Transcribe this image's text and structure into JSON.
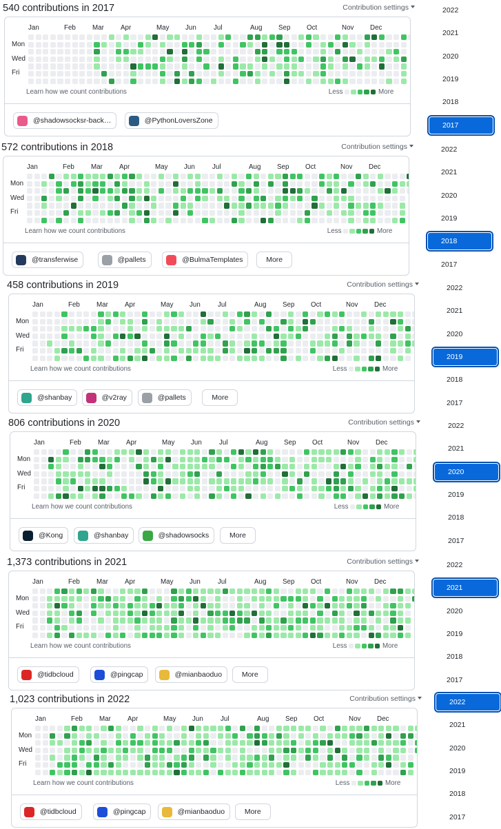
{
  "common": {
    "settings_label": "Contribution settings",
    "months": [
      "Jan",
      "Feb",
      "Mar",
      "Apr",
      "May",
      "Jun",
      "Jul",
      "Aug",
      "Sep",
      "Oct",
      "Nov",
      "Dec"
    ],
    "days": [
      "Mon",
      "Wed",
      "Fri"
    ],
    "learn_label": "Learn how we count contributions",
    "legend_less": "Less",
    "legend_more": "More",
    "more_button": "More"
  },
  "sections": [
    {
      "title": "540 contributions in 2017",
      "orgs": [
        {
          "name": "@shadowsocksr-back…",
          "icon": "paper-plane-icon",
          "color": "#e85b8a"
        },
        {
          "name": "@PythonLoversZone",
          "icon": "python-icon",
          "color": "#2b5b84"
        }
      ],
      "has_more": false,
      "years": [
        "2022",
        "2021",
        "2020",
        "2019",
        "2018",
        "2017"
      ],
      "selected": "2017"
    },
    {
      "title": "572 contributions in 2018",
      "orgs": [
        {
          "name": "@transferwise",
          "icon": "transferwise-icon",
          "color": "#233a5e"
        },
        {
          "name": "@pallets",
          "icon": "pallets-icon",
          "color": "#9aa0a6"
        },
        {
          "name": "@BulmaTemplates",
          "icon": "bulma-icon",
          "color": "#f14b5a"
        }
      ],
      "has_more": true,
      "years": [
        "2022",
        "2021",
        "2020",
        "2019",
        "2018",
        "2017"
      ],
      "selected": "2018"
    },
    {
      "title": "458 contributions in 2019",
      "orgs": [
        {
          "name": "@shanbay",
          "icon": "shanbay-icon",
          "color": "#2ea58d"
        },
        {
          "name": "@v2ray",
          "icon": "v2ray-icon",
          "color": "#c2317a"
        },
        {
          "name": "@pallets",
          "icon": "pallets-icon",
          "color": "#9aa0a6"
        }
      ],
      "has_more": true,
      "years": [
        "2022",
        "2021",
        "2020",
        "2019",
        "2018",
        "2017"
      ],
      "selected": "2019"
    },
    {
      "title": "806 contributions in 2020",
      "orgs": [
        {
          "name": "@Kong",
          "icon": "kong-icon",
          "color": "#0b1f33"
        },
        {
          "name": "@shanbay",
          "icon": "shanbay-icon",
          "color": "#2ea58d"
        },
        {
          "name": "@shadowsocks",
          "icon": "paper-plane-icon",
          "color": "#3aa845"
        }
      ],
      "has_more": true,
      "years": [
        "2022",
        "2021",
        "2020",
        "2019",
        "2018",
        "2017"
      ],
      "selected": "2020"
    },
    {
      "title": "1,373 contributions in 2021",
      "orgs": [
        {
          "name": "@tidbcloud",
          "icon": "tidbcloud-icon",
          "color": "#dc2626"
        },
        {
          "name": "@pingcap",
          "icon": "pingcap-icon",
          "color": "#1d4ed8"
        },
        {
          "name": "@mianbaoduo",
          "icon": "mianbaoduo-icon",
          "color": "#e8b93a"
        }
      ],
      "has_more": true,
      "years": [
        "2022",
        "2021",
        "2020",
        "2019",
        "2018",
        "2017"
      ],
      "selected": "2021"
    },
    {
      "title": "1,023 contributions in 2022",
      "orgs": [
        {
          "name": "@tidbcloud",
          "icon": "tidbcloud-icon",
          "color": "#dc2626"
        },
        {
          "name": "@pingcap",
          "icon": "pingcap-icon",
          "color": "#1d4ed8"
        },
        {
          "name": "@mianbaoduo",
          "icon": "mianbaoduo-icon",
          "color": "#e8b93a"
        }
      ],
      "has_more": true,
      "years": [
        "2022",
        "2021",
        "2020",
        "2019",
        "2018",
        "2017"
      ],
      "selected": "2022"
    }
  ],
  "colors": {
    "level0": "#ebedf0",
    "level1": "#9be9a8",
    "level2": "#40c463",
    "level3": "#30a14e",
    "level4": "#216e39",
    "accent": "#0969da"
  }
}
